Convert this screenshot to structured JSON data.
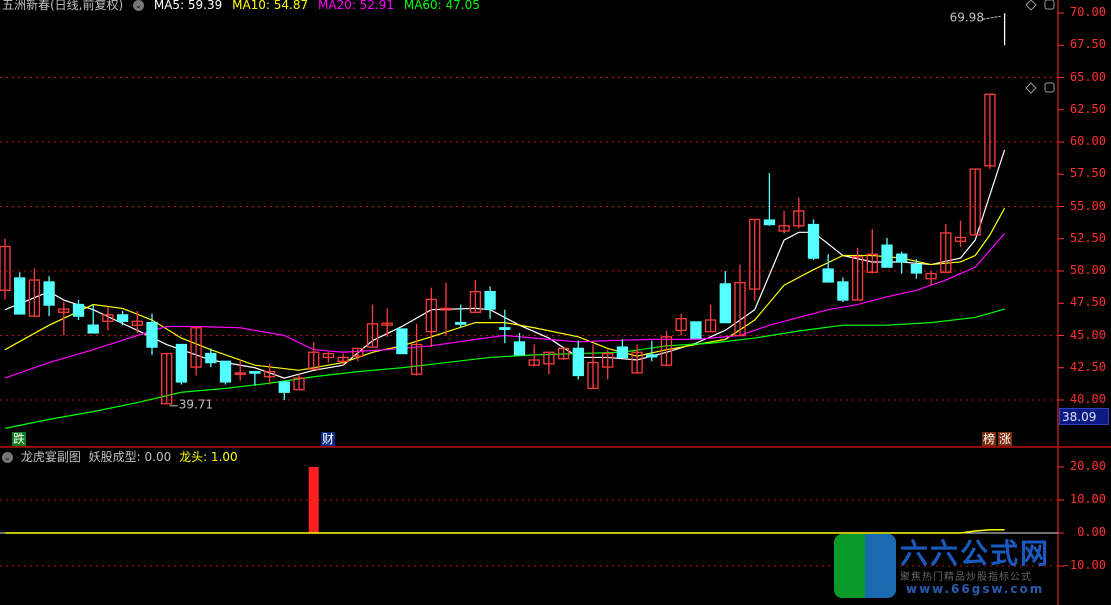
{
  "header": {
    "title": "五洲新春(日线,前复权)",
    "ma": [
      {
        "label": "MA5: 59.39",
        "color": "#ffffff"
      },
      {
        "label": "MA10: 54.87",
        "color": "#ffff00"
      },
      {
        "label": "MA20: 52.91",
        "color": "#ff00ff"
      },
      {
        "label": "MA60: 47.05",
        "color": "#00ff00"
      }
    ]
  },
  "sub_header": {
    "title": "龙虎宴副图",
    "v1": "妖股成型: 0.00",
    "v2": "龙头: 1.00"
  },
  "markers": {
    "down": "跌",
    "cai": "财",
    "bang": "榜",
    "up": "涨"
  },
  "last_price": "38.09",
  "colors": {
    "up": "#ff3c3c",
    "down": "#54ffff",
    "ma5": "#ffffff",
    "ma10": "#ffff00",
    "ma20": "#ff00ff",
    "ma60": "#00ff00",
    "axis": "#ff3030"
  },
  "logo": {
    "name": "六六公式网",
    "slogan": "聚焦热门精品炒股指标公式",
    "site": "www.66gsw.com"
  },
  "chart_data": [
    {
      "type": "candlestick",
      "ylim": [
        38.09,
        70.5
      ],
      "yticks": [
        "70.00",
        "67.50",
        "65.00",
        "62.50",
        "60.00",
        "57.50",
        "55.00",
        "52.50",
        "50.00",
        "47.50",
        "45.00",
        "42.50",
        "40.00"
      ],
      "grid": [
        65,
        60,
        55,
        50,
        45,
        40
      ],
      "annotations": [
        {
          "label": "39.71",
          "index": 11,
          "value": 39.71
        },
        {
          "label": "69.98",
          "index": 68,
          "value": 69.98
        }
      ],
      "ohlc": [
        [
          48.5,
          52.5,
          47.8,
          51.9
        ],
        [
          49.46,
          49.9,
          46.67,
          46.67
        ],
        [
          46.5,
          50.2,
          46.5,
          49.3
        ],
        [
          49.15,
          49.6,
          46.5,
          47.36
        ],
        [
          46.8,
          47.6,
          45.0,
          47.05
        ],
        [
          47.4,
          47.75,
          46.2,
          46.5
        ],
        [
          45.8,
          47.4,
          45.2,
          45.2
        ],
        [
          46.1,
          47.2,
          45.4,
          46.6
        ],
        [
          46.6,
          46.9,
          45.8,
          46.1
        ],
        [
          45.8,
          46.9,
          45.2,
          46.1
        ],
        [
          46.0,
          46.7,
          43.5,
          44.1
        ],
        [
          39.71,
          43.6,
          39.71,
          43.6
        ],
        [
          44.3,
          44.3,
          41.2,
          41.4
        ],
        [
          42.55,
          45.6,
          41.9,
          45.6
        ],
        [
          43.6,
          44.0,
          42.55,
          42.9
        ],
        [
          43.0,
          43.0,
          41.2,
          41.4
        ],
        [
          42.05,
          43.0,
          41.5,
          42.1
        ],
        [
          42.2,
          42.2,
          41.1,
          42.15
        ],
        [
          41.8,
          42.8,
          41.2,
          42.2
        ],
        [
          41.4,
          41.4,
          40.0,
          40.6
        ],
        [
          40.8,
          42.0,
          40.8,
          41.7
        ],
        [
          42.4,
          44.5,
          42.4,
          43.7
        ],
        [
          43.3,
          43.7,
          42.9,
          43.6
        ],
        [
          43.0,
          43.6,
          42.7,
          43.3
        ],
        [
          43.4,
          44.0,
          43.0,
          44.0
        ],
        [
          44.1,
          47.4,
          44.1,
          45.9
        ],
        [
          45.8,
          47.1,
          44.9,
          45.95
        ],
        [
          45.5,
          45.5,
          43.6,
          43.6
        ],
        [
          42.0,
          45.9,
          41.9,
          44.3
        ],
        [
          45.3,
          48.7,
          44.1,
          47.8
        ],
        [
          47.0,
          49.1,
          45.0,
          47.1
        ],
        [
          46.0,
          47.4,
          45.6,
          45.9
        ],
        [
          46.8,
          49.3,
          46.8,
          48.4
        ],
        [
          48.4,
          48.8,
          46.3,
          47.05
        ],
        [
          45.6,
          47.0,
          44.4,
          45.55
        ],
        [
          44.5,
          45.2,
          43.5,
          43.5
        ],
        [
          42.7,
          44.3,
          42.6,
          43.1
        ],
        [
          42.8,
          43.7,
          42.0,
          43.7
        ],
        [
          43.2,
          44.0,
          43.1,
          44.0
        ],
        [
          44.0,
          44.6,
          41.6,
          41.9
        ],
        [
          40.9,
          44.3,
          40.9,
          42.9
        ],
        [
          42.55,
          43.9,
          41.6,
          43.6
        ],
        [
          44.1,
          44.7,
          43.3,
          43.3
        ],
        [
          42.1,
          44.3,
          42.1,
          43.7
        ],
        [
          43.5,
          44.6,
          43.0,
          43.35
        ],
        [
          42.7,
          45.35,
          42.6,
          44.9
        ],
        [
          45.4,
          46.7,
          45.0,
          46.3
        ],
        [
          46.05,
          46.05,
          44.8,
          44.8
        ],
        [
          45.3,
          47.4,
          45.3,
          46.2
        ],
        [
          49.0,
          50.0,
          46.0,
          46.0
        ],
        [
          45.0,
          50.5,
          45.0,
          49.1
        ],
        [
          48.6,
          54.0,
          47.7,
          54.0
        ],
        [
          53.95,
          57.6,
          53.5,
          53.6
        ],
        [
          53.1,
          54.65,
          52.9,
          53.5
        ],
        [
          53.5,
          55.7,
          53.3,
          54.65
        ],
        [
          53.6,
          54.0,
          50.85,
          51.0
        ],
        [
          50.15,
          51.3,
          49.15,
          49.15
        ],
        [
          49.15,
          49.5,
          47.6,
          47.75
        ],
        [
          47.75,
          51.8,
          47.75,
          51.1
        ],
        [
          49.9,
          53.25,
          49.8,
          51.3
        ],
        [
          52.0,
          52.55,
          50.3,
          50.3
        ],
        [
          51.3,
          51.5,
          49.8,
          50.7
        ],
        [
          50.5,
          50.9,
          49.4,
          49.85
        ],
        [
          49.4,
          50.0,
          48.9,
          49.8
        ],
        [
          49.9,
          53.65,
          49.9,
          52.95
        ],
        [
          52.3,
          53.9,
          51.85,
          52.6
        ],
        [
          52.8,
          57.9,
          52.8,
          57.9
        ],
        [
          58.15,
          63.7,
          57.9,
          63.7
        ],
        [
          69.98,
          69.98,
          67.5,
          69.98
        ]
      ],
      "series": [
        {
          "name": "MA5",
          "points": [
            [
              0,
              47.0
            ],
            [
              3,
              48.4
            ],
            [
              4,
              47.75
            ],
            [
              6,
              47.0
            ],
            [
              9,
              45.4
            ],
            [
              11,
              44.3
            ],
            [
              14,
              43.1
            ],
            [
              17,
              42.5
            ],
            [
              19,
              41.7
            ],
            [
              21,
              42.3
            ],
            [
              23,
              42.7
            ],
            [
              25,
              44.6
            ],
            [
              27,
              45.7
            ],
            [
              29,
              47.0
            ],
            [
              32,
              47.1
            ],
            [
              33,
              47.0
            ],
            [
              35,
              45.8
            ],
            [
              37,
              44.8
            ],
            [
              39,
              43.3
            ],
            [
              41,
              43.3
            ],
            [
              43,
              43.1
            ],
            [
              45,
              43.7
            ],
            [
              47,
              44.4
            ],
            [
              49,
              45.4
            ],
            [
              51,
              47.0
            ],
            [
              53,
              52.4
            ],
            [
              54,
              53.0
            ],
            [
              55,
              53.0
            ],
            [
              57,
              51.2
            ],
            [
              59,
              50.7
            ],
            [
              61,
              50.7
            ],
            [
              63,
              50.5
            ],
            [
              65,
              51.0
            ],
            [
              66,
              52.4
            ],
            [
              67,
              55.9
            ],
            [
              68,
              59.39
            ]
          ]
        },
        {
          "name": "MA10",
          "points": [
            [
              0,
              43.9
            ],
            [
              3,
              45.8
            ],
            [
              6,
              47.4
            ],
            [
              8,
              47.1
            ],
            [
              10,
              46.2
            ],
            [
              12,
              44.8
            ],
            [
              14,
              43.9
            ],
            [
              17,
              42.7
            ],
            [
              20,
              42.3
            ],
            [
              23,
              42.9
            ],
            [
              25,
              43.7
            ],
            [
              27,
              44.2
            ],
            [
              29,
              44.9
            ],
            [
              32,
              46.0
            ],
            [
              34,
              46.0
            ],
            [
              36,
              45.6
            ],
            [
              39,
              44.9
            ],
            [
              41,
              44.0
            ],
            [
              43,
              43.4
            ],
            [
              45,
              43.9
            ],
            [
              47,
              44.3
            ],
            [
              49,
              44.7
            ],
            [
              51,
              46.2
            ],
            [
              53,
              48.9
            ],
            [
              55,
              50.1
            ],
            [
              57,
              51.2
            ],
            [
              59,
              51.2
            ],
            [
              61,
              51.0
            ],
            [
              63,
              50.5
            ],
            [
              65,
              50.7
            ],
            [
              66,
              51.2
            ],
            [
              67,
              52.8
            ],
            [
              68,
              54.87
            ]
          ]
        },
        {
          "name": "MA20",
          "points": [
            [
              0,
              41.7
            ],
            [
              3,
              42.9
            ],
            [
              6,
              43.9
            ],
            [
              9,
              45.0
            ],
            [
              11,
              45.7
            ],
            [
              13,
              45.7
            ],
            [
              16,
              45.6
            ],
            [
              19,
              45.0
            ],
            [
              21,
              43.9
            ],
            [
              23,
              43.7
            ],
            [
              26,
              43.9
            ],
            [
              29,
              44.2
            ],
            [
              32,
              44.7
            ],
            [
              34,
              45.0
            ],
            [
              37,
              44.7
            ],
            [
              39,
              44.5
            ],
            [
              41,
              44.6
            ],
            [
              44,
              44.7
            ],
            [
              47,
              44.7
            ],
            [
              50,
              45.0
            ],
            [
              52,
              45.8
            ],
            [
              54,
              46.4
            ],
            [
              56,
              47.0
            ],
            [
              58,
              47.4
            ],
            [
              60,
              48.0
            ],
            [
              62,
              48.5
            ],
            [
              64,
              49.3
            ],
            [
              66,
              50.3
            ],
            [
              68,
              52.91
            ]
          ]
        },
        {
          "name": "MA60",
          "points": [
            [
              0,
              37.8
            ],
            [
              3,
              38.5
            ],
            [
              6,
              39.1
            ],
            [
              9,
              39.8
            ],
            [
              12,
              40.6
            ],
            [
              15,
              40.9
            ],
            [
              18,
              41.3
            ],
            [
              21,
              41.8
            ],
            [
              24,
              42.2
            ],
            [
              27,
              42.5
            ],
            [
              30,
              42.9
            ],
            [
              33,
              43.3
            ],
            [
              36,
              43.5
            ],
            [
              39,
              43.6
            ],
            [
              42,
              43.7
            ],
            [
              45,
              44.2
            ],
            [
              48,
              44.4
            ],
            [
              51,
              44.8
            ],
            [
              54,
              45.35
            ],
            [
              57,
              45.8
            ],
            [
              60,
              45.8
            ],
            [
              63,
              46.0
            ],
            [
              66,
              46.4
            ],
            [
              68,
              47.05
            ]
          ]
        }
      ]
    },
    {
      "type": "bar",
      "title": "龙虎宴副图",
      "ylim": [
        -12,
        22
      ],
      "yticks": [
        "20.00",
        "10.00",
        "0.00",
        "-10.00"
      ],
      "series": [
        {
          "name": "妖股成型",
          "bars": [
            [
              21,
              20
            ]
          ]
        },
        {
          "name": "龙头",
          "points": [
            [
              0,
              0
            ],
            [
              65,
              0
            ],
            [
              66,
              0.6
            ],
            [
              67,
              1.0
            ],
            [
              68,
              1.0
            ]
          ]
        }
      ]
    }
  ]
}
